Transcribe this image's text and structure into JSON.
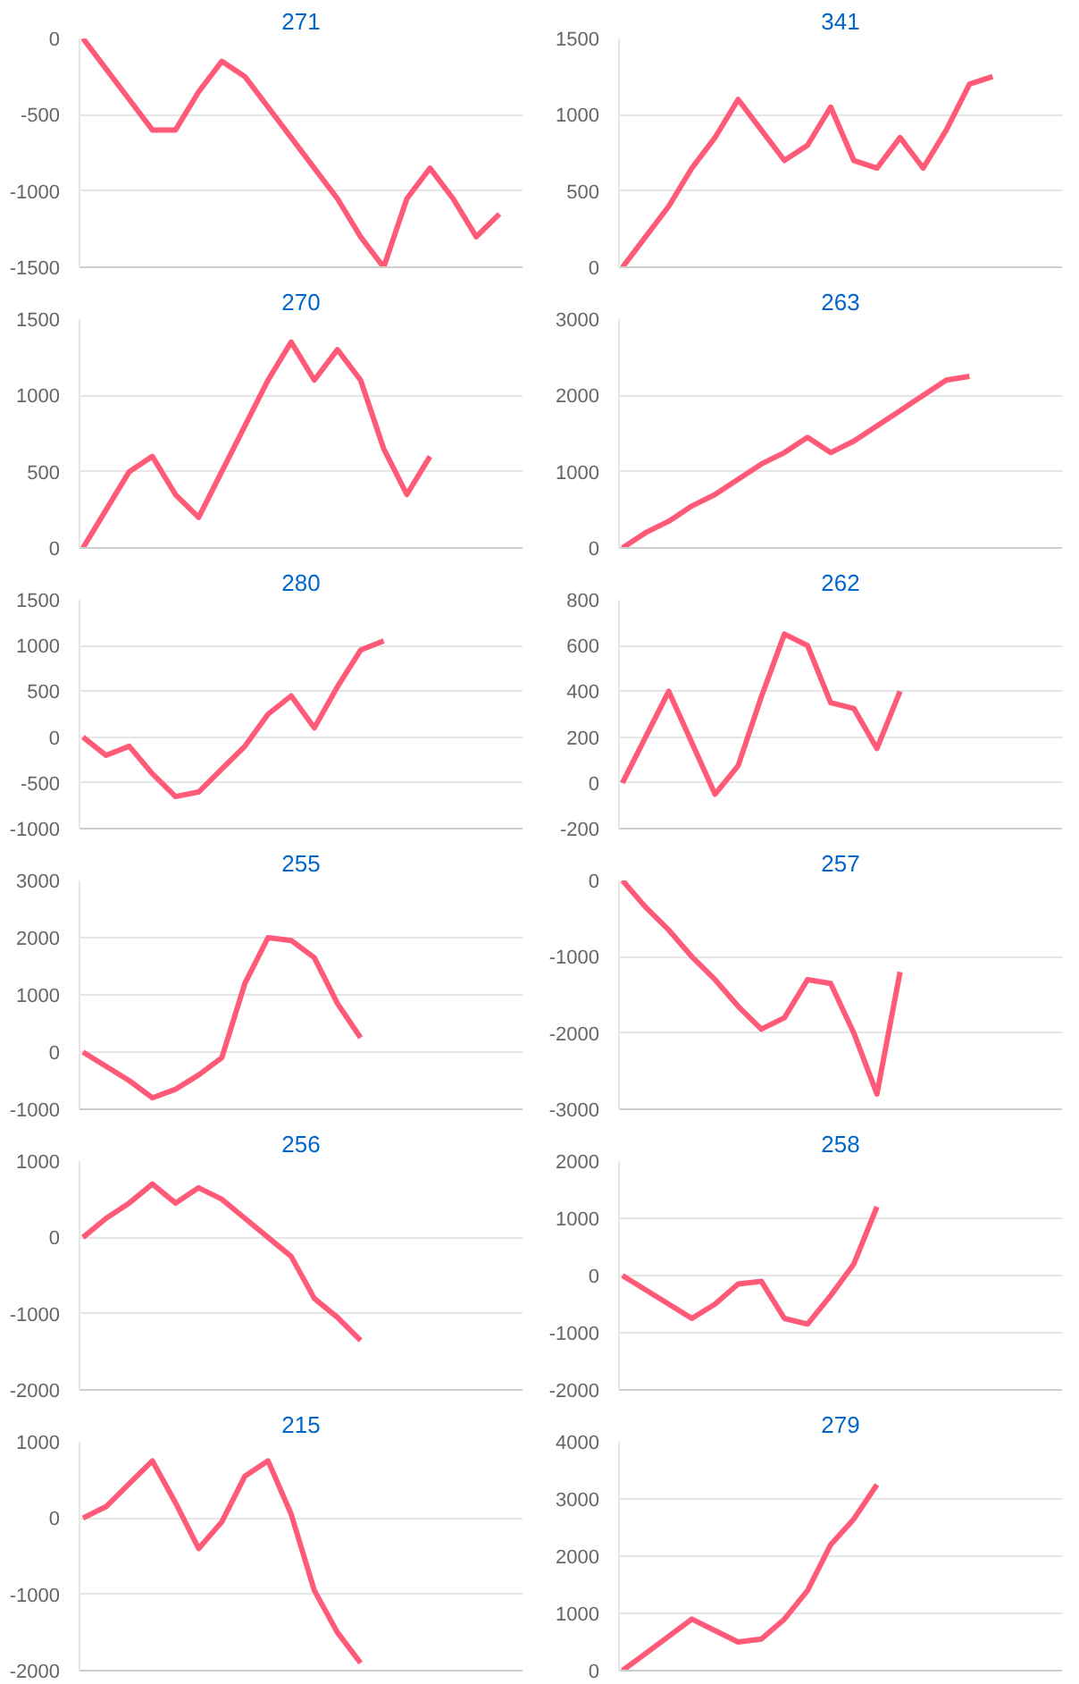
{
  "chart_data": [
    {
      "type": "line",
      "title": "271",
      "categories": [
        null,
        null,
        null,
        null,
        null,
        null,
        null,
        null,
        null,
        null,
        null,
        null,
        null,
        null,
        null,
        null,
        null,
        null,
        null,
        null
      ],
      "color": "#ff5a78",
      "values": [
        0,
        -200,
        -400,
        -600,
        -600,
        -350,
        -150,
        -250,
        -450,
        -650,
        -850,
        -1050,
        -1300,
        -1500,
        -1050,
        -850,
        -1050,
        -1300,
        -1150,
        null
      ],
      "ylim": [
        -1500,
        0
      ],
      "yticks": [
        -1500,
        -1000,
        -500,
        0
      ],
      "grid": "y"
    },
    {
      "type": "line",
      "title": "341",
      "categories": [
        null,
        null,
        null,
        null,
        null,
        null,
        null,
        null,
        null,
        null,
        null,
        null,
        null,
        null,
        null,
        null,
        null,
        null,
        null,
        null
      ],
      "color": "#ff5a78",
      "values": [
        0,
        200,
        400,
        650,
        850,
        1100,
        900,
        700,
        800,
        1050,
        700,
        650,
        850,
        650,
        900,
        1200,
        1250,
        null,
        null,
        null
      ],
      "ylim": [
        0,
        1500
      ],
      "yticks": [
        0,
        500,
        1000,
        1500
      ],
      "grid": "y"
    },
    {
      "type": "line",
      "title": "270",
      "categories": [
        null,
        null,
        null,
        null,
        null,
        null,
        null,
        null,
        null,
        null,
        null,
        null,
        null,
        null,
        null,
        null,
        null,
        null,
        null,
        null
      ],
      "color": "#ff5a78",
      "values": [
        0,
        250,
        500,
        600,
        350,
        200,
        500,
        800,
        1100,
        1350,
        1100,
        1300,
        1100,
        650,
        350,
        600,
        null,
        null,
        null,
        null
      ],
      "ylim": [
        0,
        1500
      ],
      "yticks": [
        0,
        500,
        1000,
        1500
      ],
      "grid": "y"
    },
    {
      "type": "line",
      "title": "263",
      "categories": [
        null,
        null,
        null,
        null,
        null,
        null,
        null,
        null,
        null,
        null,
        null,
        null,
        null,
        null,
        null,
        null,
        null,
        null,
        null,
        null
      ],
      "color": "#ff5a78",
      "values": [
        0,
        200,
        350,
        550,
        700,
        900,
        1100,
        1250,
        1450,
        1250,
        1400,
        1600,
        1800,
        2000,
        2200,
        2250,
        null,
        null,
        null,
        null
      ],
      "ylim": [
        0,
        3000
      ],
      "yticks": [
        0,
        1000,
        2000,
        3000
      ],
      "grid": "y"
    },
    {
      "type": "line",
      "title": "280",
      "categories": [
        null,
        null,
        null,
        null,
        null,
        null,
        null,
        null,
        null,
        null,
        null,
        null,
        null,
        null,
        null,
        null,
        null,
        null,
        null,
        null
      ],
      "color": "#ff5a78",
      "values": [
        0,
        -200,
        -100,
        -400,
        -650,
        -600,
        -350,
        -100,
        250,
        450,
        100,
        550,
        950,
        1050,
        null,
        null,
        null,
        null,
        null,
        null
      ],
      "ylim": [
        -1000,
        1500
      ],
      "yticks": [
        -1000,
        -500,
        0,
        500,
        1000,
        1500
      ],
      "grid": "y"
    },
    {
      "type": "line",
      "title": "262",
      "categories": [
        null,
        null,
        null,
        null,
        null,
        null,
        null,
        null,
        null,
        null,
        null,
        null,
        null,
        null,
        null,
        null,
        null,
        null,
        null,
        null
      ],
      "color": "#ff5a78",
      "values": [
        0,
        200,
        400,
        175,
        -50,
        75,
        375,
        650,
        600,
        350,
        325,
        150,
        400,
        null,
        null,
        null,
        null,
        null,
        null,
        null
      ],
      "ylim": [
        -200,
        800
      ],
      "yticks": [
        -200,
        0,
        200,
        400,
        600,
        800
      ],
      "grid": "y"
    },
    {
      "type": "line",
      "title": "255",
      "categories": [
        null,
        null,
        null,
        null,
        null,
        null,
        null,
        null,
        null,
        null,
        null,
        null,
        null,
        null,
        null,
        null,
        null,
        null,
        null,
        null
      ],
      "color": "#ff5a78",
      "values": [
        0,
        -250,
        -500,
        -800,
        -650,
        -400,
        -100,
        1200,
        2000,
        1950,
        1650,
        850,
        250,
        null,
        null,
        null,
        null,
        null,
        null,
        null
      ],
      "ylim": [
        -1000,
        3000
      ],
      "yticks": [
        -1000,
        0,
        1000,
        2000,
        3000
      ],
      "grid": "y"
    },
    {
      "type": "line",
      "title": "257",
      "categories": [
        null,
        null,
        null,
        null,
        null,
        null,
        null,
        null,
        null,
        null,
        null,
        null,
        null,
        null,
        null,
        null,
        null,
        null,
        null,
        null
      ],
      "color": "#ff5a78",
      "values": [
        0,
        -350,
        -650,
        -1000,
        -1300,
        -1650,
        -1950,
        -1800,
        -1300,
        -1350,
        -2000,
        -2800,
        -1200,
        null,
        null,
        null,
        null,
        null,
        null,
        null
      ],
      "ylim": [
        -3000,
        0
      ],
      "yticks": [
        -3000,
        -2000,
        -1000,
        0
      ],
      "grid": "y"
    },
    {
      "type": "line",
      "title": "256",
      "categories": [
        null,
        null,
        null,
        null,
        null,
        null,
        null,
        null,
        null,
        null,
        null,
        null,
        null,
        null,
        null,
        null,
        null,
        null,
        null,
        null
      ],
      "color": "#ff5a78",
      "values": [
        0,
        250,
        450,
        700,
        450,
        650,
        500,
        250,
        0,
        -250,
        -800,
        -1050,
        -1350,
        null,
        null,
        null,
        null,
        null,
        null,
        null
      ],
      "ylim": [
        -2000,
        1000
      ],
      "yticks": [
        -2000,
        -1000,
        0,
        1000
      ],
      "grid": "y"
    },
    {
      "type": "line",
      "title": "258",
      "categories": [
        null,
        null,
        null,
        null,
        null,
        null,
        null,
        null,
        null,
        null,
        null,
        null,
        null,
        null,
        null,
        null,
        null,
        null,
        null,
        null
      ],
      "color": "#ff5a78",
      "values": [
        0,
        -250,
        -500,
        -750,
        -500,
        -150,
        -100,
        -750,
        -850,
        -350,
        200,
        1200,
        null,
        null,
        null,
        null,
        null,
        null,
        null,
        null
      ],
      "ylim": [
        -2000,
        2000
      ],
      "yticks": [
        -2000,
        -1000,
        0,
        1000,
        2000
      ],
      "grid": "y"
    },
    {
      "type": "line",
      "title": "215",
      "categories": [
        null,
        null,
        null,
        null,
        null,
        null,
        null,
        null,
        null,
        null,
        null,
        null,
        null,
        null,
        null,
        null,
        null,
        null,
        null,
        null
      ],
      "color": "#ff5a78",
      "values": [
        0,
        150,
        450,
        750,
        200,
        -400,
        -50,
        550,
        750,
        50,
        -950,
        -1500,
        -1900,
        null,
        null,
        null,
        null,
        null,
        null,
        null
      ],
      "ylim": [
        -2000,
        1000
      ],
      "yticks": [
        -2000,
        -1000,
        0,
        1000
      ],
      "grid": "y"
    },
    {
      "type": "line",
      "title": "279",
      "categories": [
        null,
        null,
        null,
        null,
        null,
        null,
        null,
        null,
        null,
        null,
        null,
        null,
        null,
        null,
        null,
        null,
        null,
        null,
        null,
        null
      ],
      "color": "#ff5a78",
      "values": [
        0,
        300,
        600,
        900,
        700,
        500,
        550,
        900,
        1400,
        2200,
        2650,
        3250,
        null,
        null,
        null,
        null,
        null,
        null,
        null,
        null
      ],
      "ylim": [
        0,
        4000
      ],
      "yticks": [
        0,
        1000,
        2000,
        3000,
        4000
      ],
      "grid": "y"
    }
  ]
}
